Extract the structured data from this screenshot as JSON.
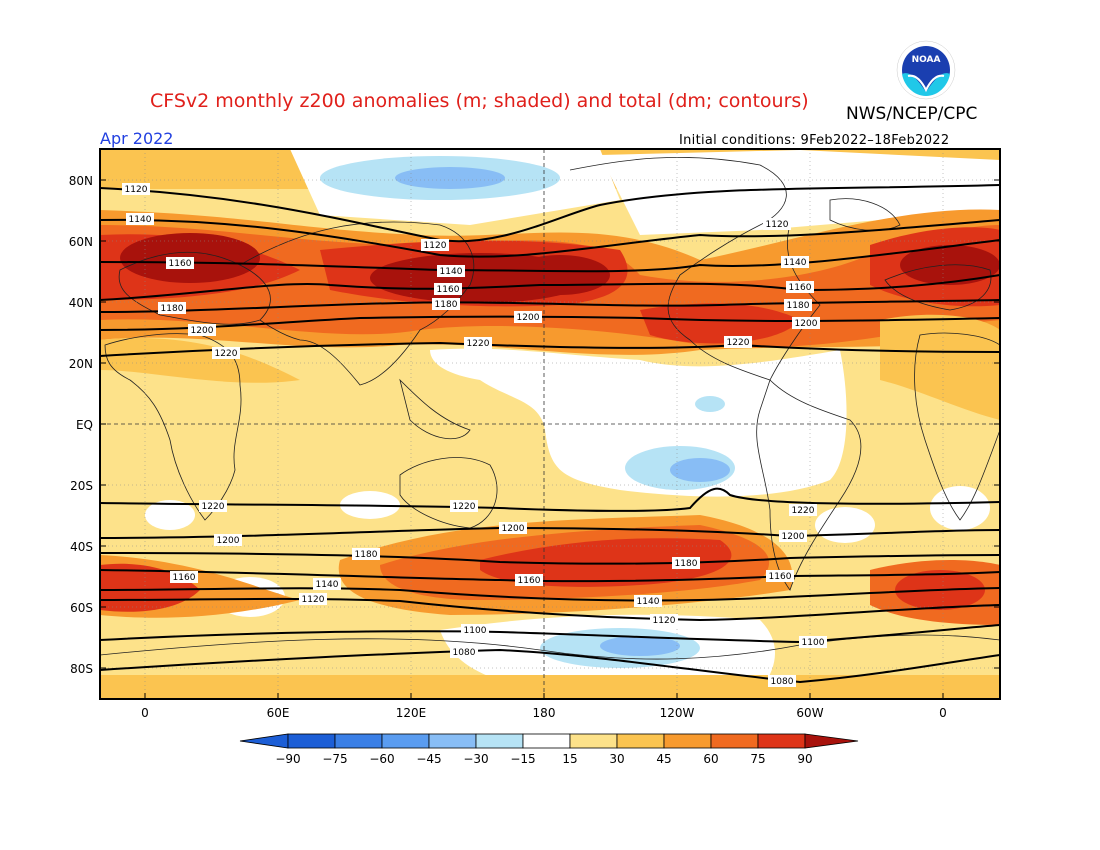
{
  "header": {
    "title": "CFSv2 monthly z200 anomalies (m; shaded) and total (dm; contours)",
    "org": "NWS/NCEP/CPC",
    "month": "Apr 2022",
    "initial_conditions": "Initial conditions: 9Feb2022–18Feb2022",
    "logo_text": "NOAA"
  },
  "axes": {
    "lat_labels": [
      "80N",
      "60N",
      "40N",
      "20N",
      "EQ",
      "20S",
      "40S",
      "60S",
      "80S"
    ],
    "lon_labels": [
      "0",
      "60E",
      "120E",
      "180",
      "120W",
      "60W",
      "0"
    ]
  },
  "colorbar": {
    "labels": [
      "−90",
      "−75",
      "−60",
      "−45",
      "−30",
      "−15",
      "15",
      "30",
      "45",
      "60",
      "75",
      "90"
    ],
    "colors": [
      "#1c5ed6",
      "#3a7fe6",
      "#5a9cf0",
      "#88bdf5",
      "#b6e3f5",
      "#ffffff",
      "#fde28a",
      "#fbc450",
      "#f79a2e",
      "#f06a20",
      "#de3418",
      "#a8120c"
    ]
  },
  "contour_labels": [
    "1080",
    "1100",
    "1120",
    "1140",
    "1160",
    "1180",
    "1200",
    "1220"
  ],
  "colors": {
    "title": "#e0201b",
    "month": "#2240e0",
    "contour": "#000000"
  }
}
